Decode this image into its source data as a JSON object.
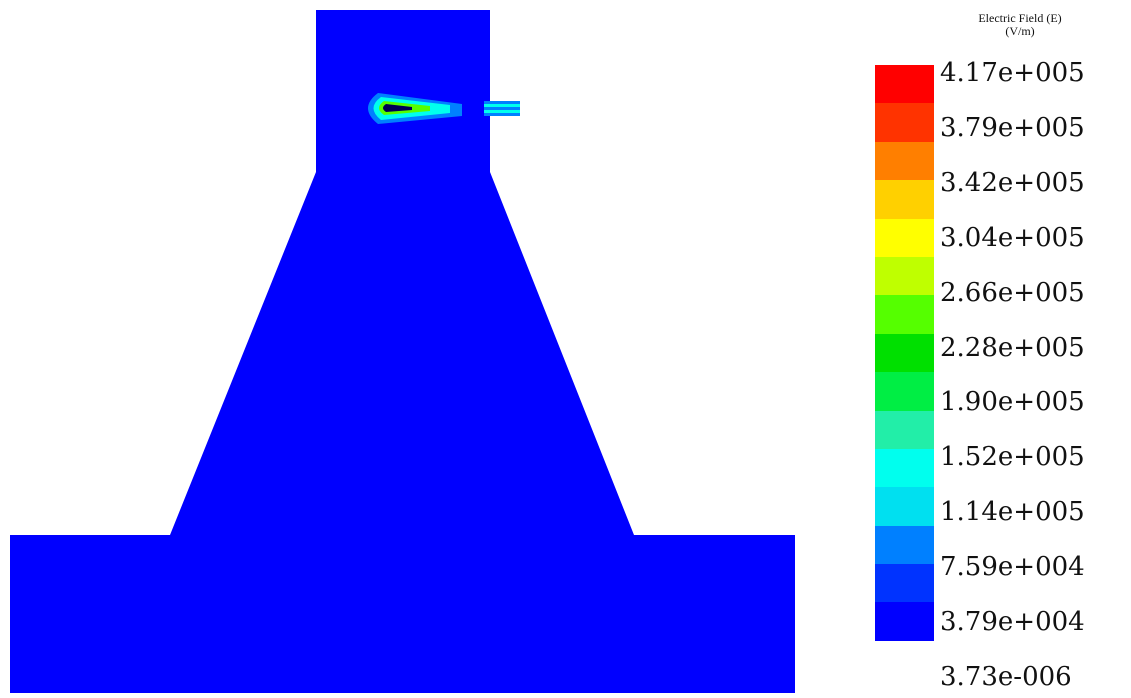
{
  "chart_data": {
    "type": "heatmap",
    "title": "Electric Field (E)",
    "unit": "(V/m)",
    "colorbar": {
      "levels": [
        "4.17e+005",
        "3.79e+005",
        "3.42e+005",
        "3.04e+005",
        "2.66e+005",
        "2.28e+005",
        "1.90e+005",
        "1.52e+005",
        "1.14e+005",
        "7.59e+004",
        "3.79e+004",
        "3.73e-006"
      ],
      "colors": [
        "#ff0000",
        "#ff3300",
        "#ff7f00",
        "#ffd000",
        "#ffff00",
        "#bfff00",
        "#55ff00",
        "#00e000",
        "#00ee44",
        "#22eea8",
        "#00ffee",
        "#00e0f0",
        "#0080ff",
        "#0033ff",
        "#0000ff"
      ],
      "min": 3.73e-06,
      "max": 417000
    },
    "field_background_color": "#0000ff"
  }
}
